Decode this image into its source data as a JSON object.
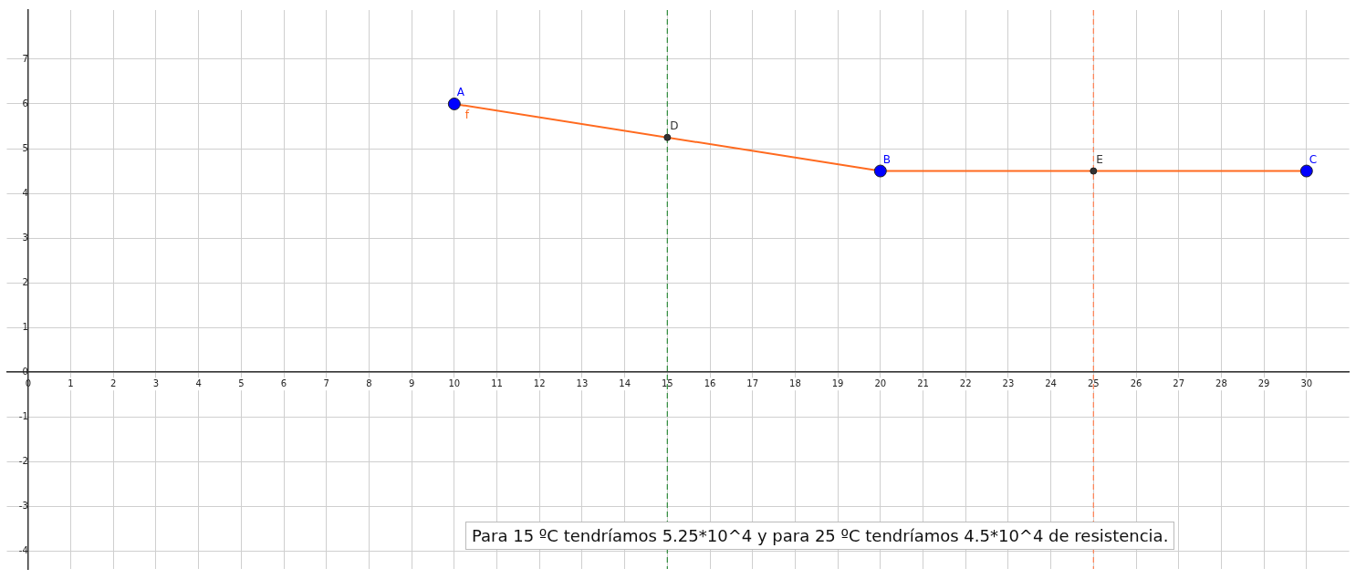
{
  "chart_data": {
    "type": "line",
    "xlim": [
      -0.5,
      31
    ],
    "ylim": [
      -4.4,
      8.1
    ],
    "xticks": [
      0,
      1,
      2,
      3,
      4,
      5,
      6,
      7,
      8,
      9,
      10,
      11,
      12,
      13,
      14,
      15,
      16,
      17,
      18,
      19,
      20,
      21,
      22,
      23,
      24,
      25,
      26,
      27,
      28,
      29,
      30
    ],
    "yticks": [
      -4,
      -3,
      -2,
      -1,
      0,
      1,
      2,
      3,
      4,
      5,
      6,
      7
    ],
    "grid": true,
    "legend": false,
    "series": [
      {
        "name": "f",
        "color": "#ff6a1f",
        "x": [
          10,
          20,
          30
        ],
        "values": [
          6,
          4.5,
          4.5
        ],
        "marker": "none"
      },
      {
        "type": "scatter",
        "color": "#0000ff",
        "x": [
          10,
          20,
          30
        ],
        "values": [
          6,
          4.5,
          4.5
        ],
        "marker": "circle"
      },
      {
        "type": "scatter",
        "color": "#333333",
        "x": [
          15,
          25
        ],
        "values": [
          5.25,
          4.5
        ],
        "marker": "circle"
      }
    ],
    "ref_lines": [
      {
        "axis": "x",
        "value": 15,
        "color": "#2e8b3a",
        "line_style": "dashed"
      },
      {
        "axis": "x",
        "value": 25,
        "color": "#ff7f50",
        "line_style": "dashed"
      }
    ],
    "annotations": [
      {
        "text": "A",
        "x": 10,
        "y": 6
      },
      {
        "text": "B",
        "x": 20,
        "y": 4.5
      },
      {
        "text": "C",
        "x": 30,
        "y": 4.5
      },
      {
        "text": "D",
        "x": 15,
        "y": 5.25
      },
      {
        "text": "E",
        "x": 25,
        "y": 4.5
      },
      "Para 15 ºC tendríamos 5.25*10^4 y para 25 ºC tendríamos 4.5*10^4 de resistencia."
    ]
  }
}
